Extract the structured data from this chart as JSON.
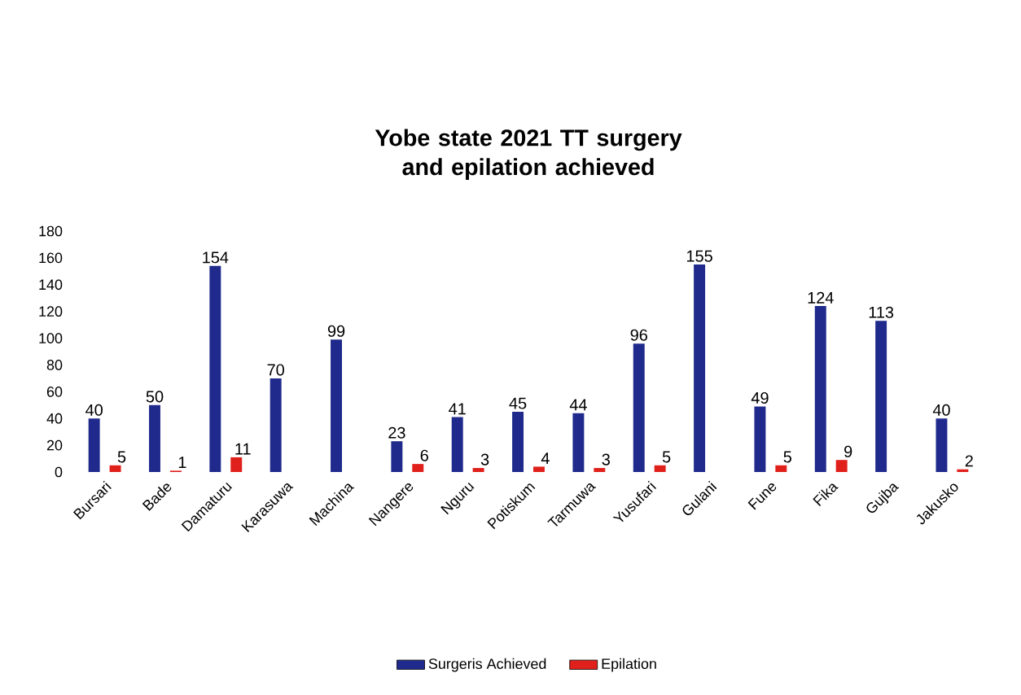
{
  "chart_data": {
    "type": "bar",
    "title": "Yobe state 2021 TT surgery and epilation achieved",
    "categories": [
      "Bursari",
      "Bade",
      "Damaturu",
      "Karasuwa",
      "Machina",
      "Nangere",
      "Nguru",
      "Potiskum",
      "Tarmuwa",
      "Yusufari",
      "Gulani",
      "Fune",
      "Fika",
      "Gujba",
      "Jakusko"
    ],
    "series": [
      {
        "name": "Surgeris Achieved",
        "color": "#1f2a8c",
        "values": [
          40,
          50,
          154,
          70,
          99,
          23,
          41,
          45,
          44,
          96,
          155,
          49,
          124,
          113,
          40
        ]
      },
      {
        "name": "Epilation",
        "color": "#e0201b",
        "values": [
          5,
          1,
          11,
          null,
          null,
          6,
          3,
          4,
          3,
          5,
          null,
          5,
          9,
          null,
          2
        ]
      }
    ],
    "ylim": [
      0,
      180
    ],
    "yticks": [
      0,
      20,
      40,
      60,
      80,
      100,
      120,
      140,
      160,
      180
    ],
    "data_labels": true,
    "legend": "bottom"
  }
}
